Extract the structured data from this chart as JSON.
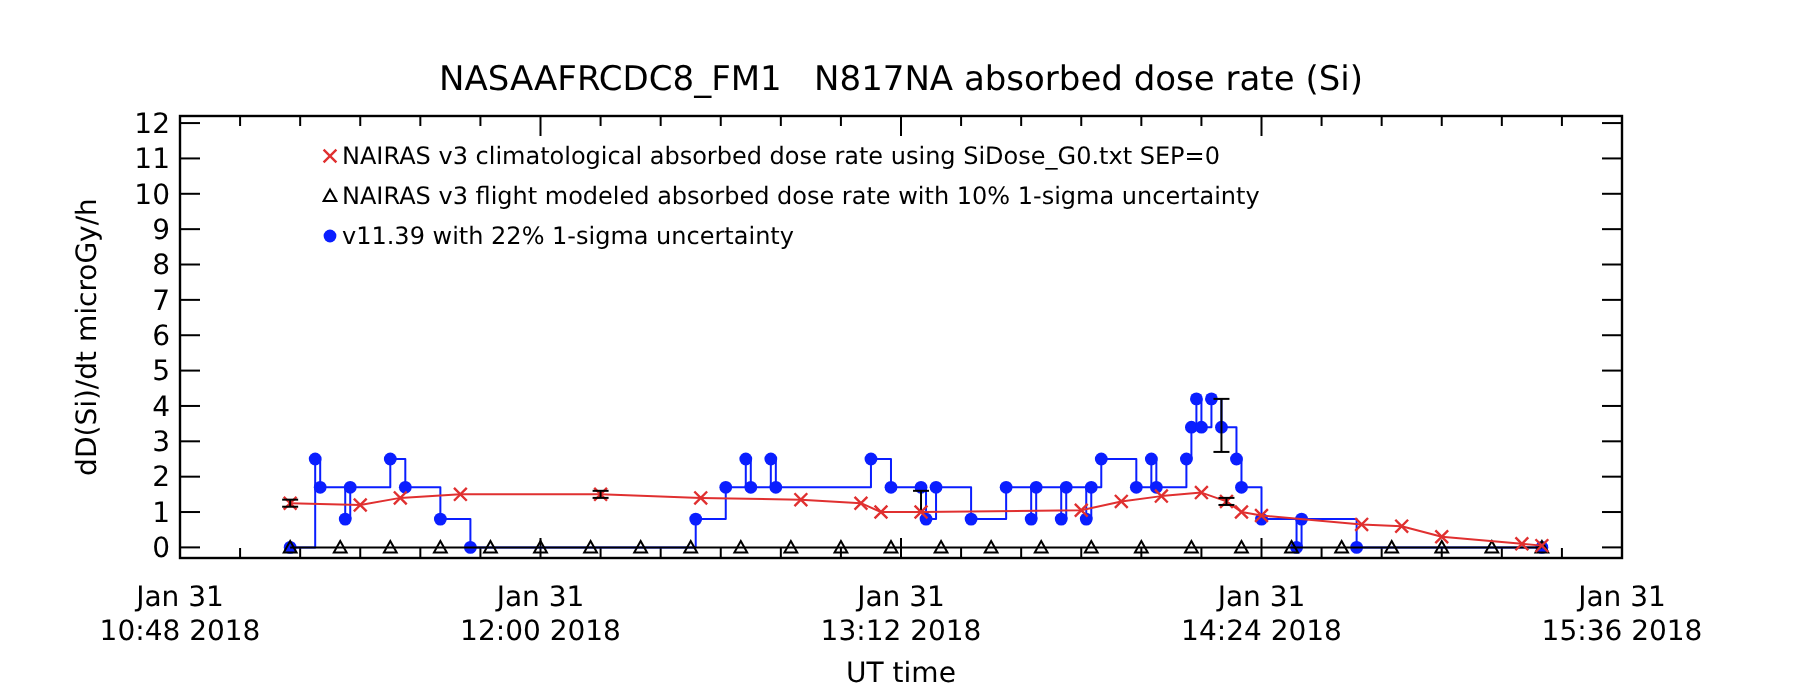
{
  "chart_data": {
    "type": "line",
    "title": "NASAAFRCDC8_FM1   N817NA absorbed dose rate (Si)",
    "xlabel": "UT time",
    "ylabel": "dD(Si)/dt microGy/h",
    "xlim": [
      "2018-01-31T10:48",
      "2018-01-31T15:36"
    ],
    "xticks": [
      {
        "value": "2018-01-31T10:48",
        "label": "Jan 31\n10:48 2018"
      },
      {
        "value": "2018-01-31T11:00",
        "label": null
      },
      {
        "value": "2018-01-31T11:12",
        "label": null
      },
      {
        "value": "2018-01-31T11:24",
        "label": null
      },
      {
        "value": "2018-01-31T11:36",
        "label": null
      },
      {
        "value": "2018-01-31T11:48",
        "label": null
      },
      {
        "value": "2018-01-31T12:00",
        "label": "Jan 31\n12:00 2018"
      },
      {
        "value": "2018-01-31T12:12",
        "label": null
      },
      {
        "value": "2018-01-31T12:24",
        "label": null
      },
      {
        "value": "2018-01-31T12:36",
        "label": null
      },
      {
        "value": "2018-01-31T12:48",
        "label": null
      },
      {
        "value": "2018-01-31T13:00",
        "label": null
      },
      {
        "value": "2018-01-31T13:12",
        "label": "Jan 31\n13:12 2018"
      },
      {
        "value": "2018-01-31T13:24",
        "label": null
      },
      {
        "value": "2018-01-31T13:36",
        "label": null
      },
      {
        "value": "2018-01-31T13:48",
        "label": null
      },
      {
        "value": "2018-01-31T14:00",
        "label": null
      },
      {
        "value": "2018-01-31T14:12",
        "label": null
      },
      {
        "value": "2018-01-31T14:24",
        "label": "Jan 31\n14:24 2018"
      },
      {
        "value": "2018-01-31T14:36",
        "label": null
      },
      {
        "value": "2018-01-31T14:48",
        "label": null
      },
      {
        "value": "2018-01-31T15:00",
        "label": null
      },
      {
        "value": "2018-01-31T15:12",
        "label": null
      },
      {
        "value": "2018-01-31T15:24",
        "label": null
      },
      {
        "value": "2018-01-31T15:36",
        "label": "Jan 31\n15:36 2018"
      }
    ],
    "ylim": [
      -0.3,
      12.2
    ],
    "yticks": [
      0,
      1,
      2,
      3,
      4,
      5,
      6,
      7,
      8,
      9,
      10,
      11,
      12
    ],
    "legend": "top left",
    "series": [
      {
        "name": "NAIRAS v3 climatological absorbed dose rate using SiDose_G0.txt SEP=0",
        "marker": "cross",
        "color": "#e03030",
        "x": [
          "2018-01-31T11:10",
          "2018-01-31T11:24",
          "2018-01-31T11:32",
          "2018-01-31T11:44",
          "2018-01-31T12:12",
          "2018-01-31T12:32",
          "2018-01-31T12:52",
          "2018-01-31T13:04",
          "2018-01-31T13:08",
          "2018-01-31T13:16",
          "2018-01-31T13:48",
          "2018-01-31T13:56",
          "2018-01-31T14:04",
          "2018-01-31T14:12",
          "2018-01-31T14:17",
          "2018-01-31T14:20",
          "2018-01-31T14:24",
          "2018-01-31T14:44",
          "2018-01-31T14:52",
          "2018-01-31T15:00",
          "2018-01-31T15:16",
          "2018-01-31T15:20"
        ],
        "values": [
          1.25,
          1.2,
          1.4,
          1.5,
          1.5,
          1.4,
          1.35,
          1.25,
          1.0,
          1.0,
          1.05,
          1.3,
          1.45,
          1.55,
          1.3,
          1.0,
          0.9,
          0.65,
          0.6,
          0.3,
          0.1,
          0.05
        ],
        "errors": [
          0.1,
          null,
          null,
          null,
          0.1,
          null,
          null,
          null,
          null,
          null,
          null,
          null,
          null,
          null,
          0.1,
          null,
          null,
          null,
          null,
          null,
          null,
          null
        ]
      },
      {
        "name": "NAIRAS v3 flight modeled absorbed dose rate with 10% 1-sigma uncertainty",
        "type": "line",
        "marker": "triangle",
        "color": "#000000",
        "x": [
          "2018-01-31T11:10",
          "2018-01-31T11:20",
          "2018-01-31T11:30",
          "2018-01-31T11:40",
          "2018-01-31T11:50",
          "2018-01-31T12:00",
          "2018-01-31T12:10",
          "2018-01-31T12:20",
          "2018-01-31T12:30",
          "2018-01-31T12:40",
          "2018-01-31T12:50",
          "2018-01-31T13:00",
          "2018-01-31T13:10",
          "2018-01-31T13:20",
          "2018-01-31T13:30",
          "2018-01-31T13:40",
          "2018-01-31T13:50",
          "2018-01-31T14:00",
          "2018-01-31T14:10",
          "2018-01-31T14:20",
          "2018-01-31T14:30",
          "2018-01-31T14:40",
          "2018-01-31T14:50",
          "2018-01-31T15:00",
          "2018-01-31T15:10",
          "2018-01-31T15:20"
        ],
        "values": [
          0,
          0,
          0,
          0,
          0,
          0,
          0,
          0,
          0,
          0,
          0,
          0,
          0,
          0,
          0,
          0,
          0,
          0,
          0,
          0,
          0,
          0,
          0,
          0,
          0,
          0
        ]
      },
      {
        "name": "v11.39 with 22% 1-sigma uncertainty",
        "type": "step",
        "marker": "circle",
        "color": "#0a1eff",
        "x": [
          "2018-01-31T11:10",
          "2018-01-31T11:15",
          "2018-01-31T11:16",
          "2018-01-31T11:21",
          "2018-01-31T11:22",
          "2018-01-31T11:30",
          "2018-01-31T11:33",
          "2018-01-31T11:40",
          "2018-01-31T11:46",
          "2018-01-31T12:31",
          "2018-01-31T12:37",
          "2018-01-31T12:41",
          "2018-01-31T12:42",
          "2018-01-31T12:46",
          "2018-01-31T12:47",
          "2018-01-31T13:06",
          "2018-01-31T13:10",
          "2018-01-31T13:16",
          "2018-01-31T13:17",
          "2018-01-31T13:19",
          "2018-01-31T13:26",
          "2018-01-31T13:33",
          "2018-01-31T13:38",
          "2018-01-31T13:39",
          "2018-01-31T13:44",
          "2018-01-31T13:45",
          "2018-01-31T13:49",
          "2018-01-31T13:50",
          "2018-01-31T13:52",
          "2018-01-31T13:59",
          "2018-01-31T14:02",
          "2018-01-31T14:03",
          "2018-01-31T14:09",
          "2018-01-31T14:10",
          "2018-01-31T14:11",
          "2018-01-31T14:12",
          "2018-01-31T14:14",
          "2018-01-31T14:16",
          "2018-01-31T14:19",
          "2018-01-31T14:20",
          "2018-01-31T14:24",
          "2018-01-31T14:31",
          "2018-01-31T14:32",
          "2018-01-31T14:43",
          "2018-01-31T15:20"
        ],
        "values": [
          0,
          2.5,
          1.7,
          0.8,
          1.7,
          2.5,
          1.7,
          0.8,
          0,
          0.8,
          1.7,
          2.5,
          1.7,
          2.5,
          1.7,
          2.5,
          1.7,
          1.7,
          0.8,
          1.7,
          0.8,
          1.7,
          0.8,
          1.7,
          0.8,
          1.7,
          0.8,
          1.7,
          2.5,
          1.7,
          2.5,
          1.7,
          2.5,
          3.4,
          4.2,
          3.4,
          4.2,
          3.4,
          2.5,
          1.7,
          0.8,
          0,
          0.8,
          0,
          0
        ],
        "errors": [
          null,
          null,
          null,
          null,
          null,
          null,
          null,
          null,
          null,
          null,
          null,
          null,
          null,
          null,
          null,
          null,
          null,
          [
            1.0,
            1.6
          ],
          null,
          null,
          null,
          null,
          null,
          null,
          null,
          null,
          null,
          null,
          null,
          null,
          null,
          null,
          null,
          null,
          null,
          null,
          null,
          [
            2.7,
            4.2
          ],
          null,
          null,
          null,
          null,
          null,
          null,
          null
        ]
      }
    ]
  }
}
